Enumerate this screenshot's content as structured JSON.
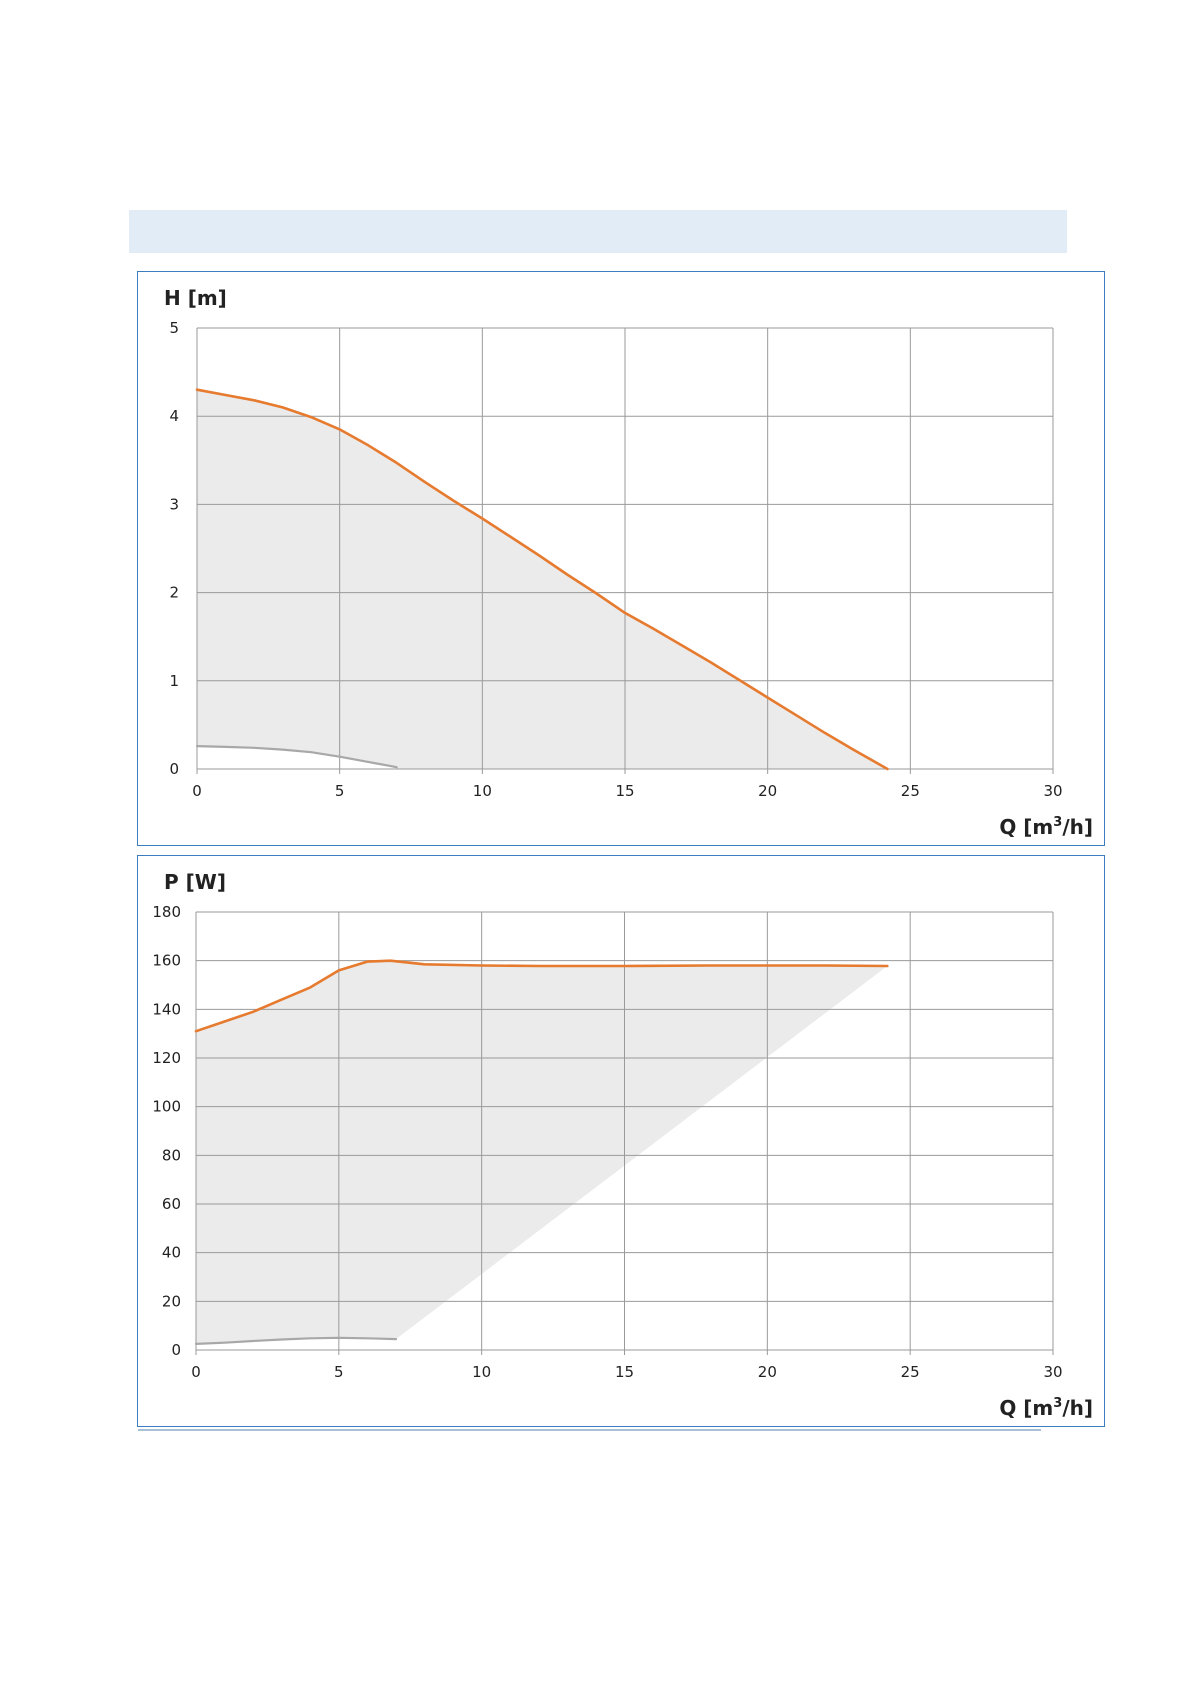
{
  "colors": {
    "header_band": "#e1ecf6",
    "frame_border": "#3a7dc0",
    "grid": "#9a9a9a",
    "curve_max": "#e67a2e",
    "curve_min": "#a8a8a8",
    "area_fill": "#ebebeb"
  },
  "chart_data": [
    {
      "type": "line",
      "ylabel": "H [m]",
      "xlabel_main": "Q [m",
      "xlabel_sup": "3",
      "xlabel_tail": "/h]",
      "xlim": [
        0,
        30
      ],
      "ylim": [
        0,
        5
      ],
      "x_ticks": [
        0,
        5,
        10,
        15,
        20,
        25,
        30
      ],
      "y_ticks": [
        0,
        1,
        2,
        3,
        4,
        5
      ],
      "grid": true,
      "series": [
        {
          "role": "max",
          "color": "#e67a2e",
          "x": [
            0,
            1,
            2,
            3,
            4,
            5,
            6,
            7,
            8,
            9,
            10,
            11,
            12,
            13,
            14,
            15,
            16,
            17,
            18,
            19,
            20,
            21,
            22,
            23,
            24.2
          ],
          "y": [
            4.3,
            4.24,
            4.18,
            4.1,
            3.99,
            3.85,
            3.67,
            3.47,
            3.25,
            3.04,
            2.84,
            2.63,
            2.42,
            2.2,
            1.99,
            1.77,
            1.59,
            1.4,
            1.21,
            1.01,
            0.81,
            0.61,
            0.41,
            0.22,
            0
          ]
        },
        {
          "role": "min",
          "color": "#a8a8a8",
          "x": [
            0,
            1,
            2,
            3,
            4,
            5,
            6,
            7
          ],
          "y": [
            0.26,
            0.25,
            0.24,
            0.22,
            0.19,
            0.14,
            0.08,
            0.02
          ]
        }
      ]
    },
    {
      "type": "line",
      "ylabel": "P [W]",
      "xlabel_main": "Q [m",
      "xlabel_sup": "3",
      "xlabel_tail": "/h]",
      "xlim": [
        0,
        30
      ],
      "ylim": [
        0,
        180
      ],
      "x_ticks": [
        0,
        5,
        10,
        15,
        20,
        25,
        30
      ],
      "y_ticks": [
        0,
        20,
        40,
        60,
        80,
        100,
        120,
        140,
        160,
        180
      ],
      "grid": true,
      "series": [
        {
          "role": "max",
          "color": "#e67a2e",
          "x": [
            0,
            1,
            2,
            3,
            4,
            5,
            6,
            6.8,
            8,
            10,
            12,
            15,
            18,
            20,
            22,
            24.2
          ],
          "y": [
            131,
            135,
            139,
            144,
            149,
            156,
            159.6,
            160,
            158.5,
            158,
            157.8,
            157.8,
            158,
            158,
            158,
            157.8
          ]
        },
        {
          "role": "min",
          "color": "#a8a8a8",
          "x": [
            0,
            1,
            2,
            3,
            4,
            5,
            6,
            7
          ],
          "y": [
            2.5,
            3,
            3.7,
            4.3,
            4.8,
            5,
            4.8,
            4.5
          ]
        }
      ]
    }
  ]
}
